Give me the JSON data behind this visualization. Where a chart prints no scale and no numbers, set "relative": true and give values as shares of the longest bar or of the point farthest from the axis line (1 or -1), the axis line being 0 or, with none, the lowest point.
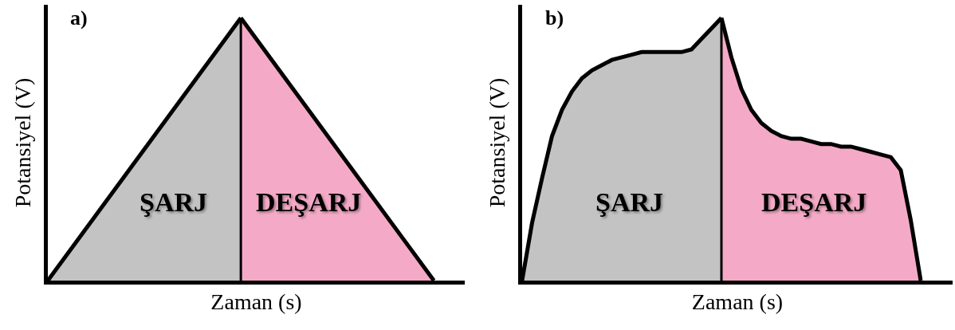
{
  "chart_data": [
    {
      "type": "area",
      "title": "a)",
      "xlabel": "Zaman (s)",
      "ylabel": "Potansiyel (V)",
      "relative": true,
      "categories": [
        null,
        null,
        null
      ],
      "series": [
        {
          "name": "ŞARJ",
          "color": "#c3c3c3",
          "values": [
            0,
            1,
            null
          ]
        },
        {
          "name": "DEŞARJ",
          "color": "#f4aac6",
          "values": [
            null,
            1,
            0
          ]
        }
      ]
    },
    {
      "type": "area",
      "title": "b)",
      "xlabel": "Zaman (s)",
      "ylabel": "Potansiyel (V)",
      "relative": true,
      "categories": [
        null,
        null,
        null,
        null,
        null,
        null,
        null,
        null,
        null,
        null,
        null,
        null,
        null,
        null,
        null,
        null,
        null,
        null,
        null,
        null,
        null,
        null,
        null,
        null,
        null,
        null,
        null,
        null,
        null,
        null,
        null,
        null,
        null,
        null,
        null,
        null,
        null,
        null,
        null,
        null,
        null
      ],
      "series": [
        {
          "name": "ŞARJ",
          "color": "#c3c3c3",
          "values": [
            0,
            0.22,
            0.39,
            0.55,
            0.65,
            0.72,
            0.77,
            0.8,
            0.82,
            0.84,
            0.85,
            0.86,
            0.87,
            0.87,
            0.87,
            0.87,
            0.87,
            0.88,
            0.92,
            0.96,
            1,
            null,
            null,
            null,
            null,
            null,
            null,
            null,
            null,
            null,
            null,
            null,
            null,
            null,
            null,
            null,
            null,
            null,
            null,
            null,
            null
          ]
        },
        {
          "name": "DEŞARJ",
          "color": "#f4aac6",
          "values": [
            null,
            null,
            null,
            null,
            null,
            null,
            null,
            null,
            null,
            null,
            null,
            null,
            null,
            null,
            null,
            null,
            null,
            null,
            null,
            null,
            1,
            0.85,
            0.73,
            0.65,
            0.6,
            0.57,
            0.55,
            0.54,
            0.54,
            0.53,
            0.52,
            0.52,
            0.51,
            0.51,
            0.5,
            0.49,
            0.48,
            0.47,
            0.42,
            0.23,
            0
          ]
        }
      ]
    }
  ]
}
